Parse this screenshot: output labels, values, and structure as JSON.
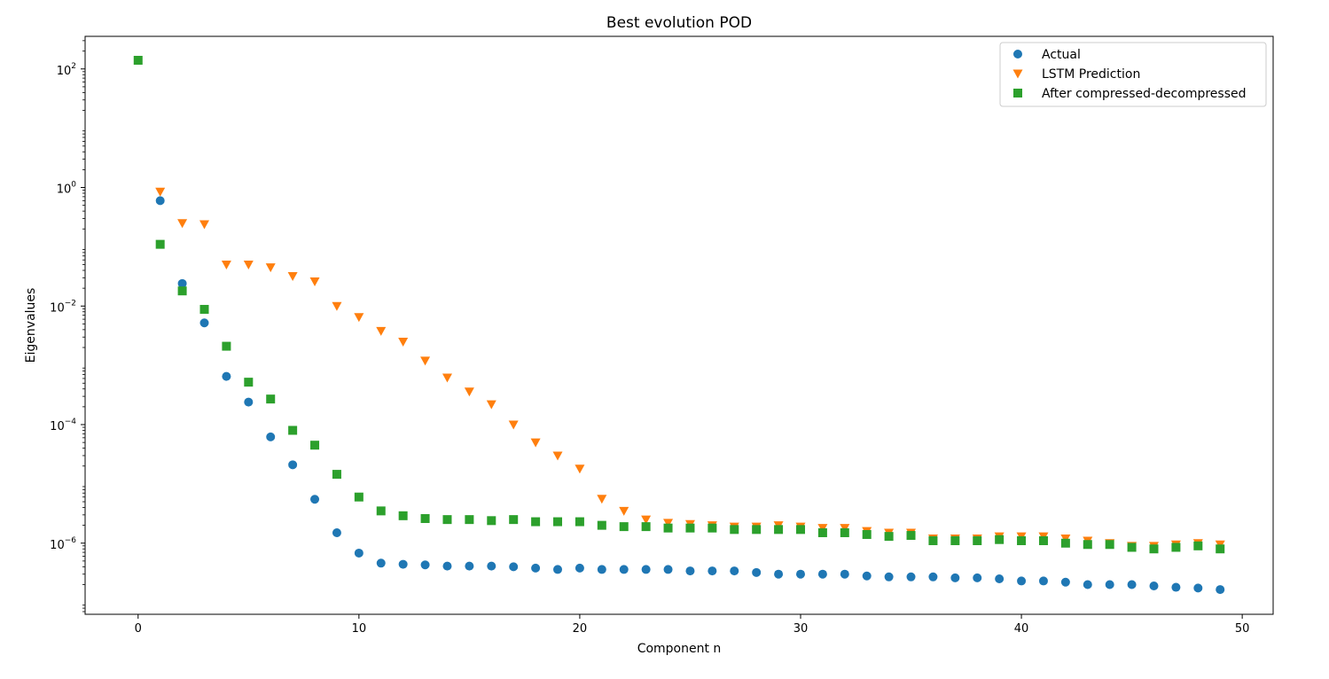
{
  "colors": {
    "actual": "#1f77b4",
    "lstm": "#ff7f0e",
    "compressed": "#2ca02c"
  },
  "chart_data": {
    "type": "scatter",
    "title": "Best evolution POD",
    "xlabel": "Component n",
    "ylabel": "Eigenvalues",
    "yscale": "log",
    "xlim": [
      -2.4,
      51.4
    ],
    "ylim_log10": [
      -7.2,
      2.55
    ],
    "x_ticks": [
      0,
      10,
      20,
      30,
      40,
      50
    ],
    "x_tick_labels": [
      "0",
      "10",
      "20",
      "30",
      "40",
      "50"
    ],
    "y_ticks_log10": [
      2,
      0,
      -2,
      -4,
      -6
    ],
    "y_tick_bases": [
      "10",
      "10",
      "10",
      "10",
      "10"
    ],
    "y_tick_exponents": [
      "2",
      "0",
      "−2",
      "−4",
      "−6"
    ],
    "legend_position": "top-right",
    "x": [
      0,
      1,
      2,
      3,
      4,
      5,
      6,
      7,
      8,
      9,
      10,
      11,
      12,
      13,
      14,
      15,
      16,
      17,
      18,
      19,
      20,
      21,
      22,
      23,
      24,
      25,
      26,
      27,
      28,
      29,
      30,
      31,
      32,
      33,
      34,
      35,
      36,
      37,
      38,
      39,
      40,
      41,
      42,
      43,
      44,
      45,
      46,
      47,
      48,
      49
    ],
    "series": [
      {
        "name": "Actual",
        "key": "actual",
        "marker": "circle",
        "values": [
          null,
          0.6,
          0.024,
          0.0052,
          0.00065,
          0.00024,
          6.2e-05,
          2.1e-05,
          5.5e-06,
          1.5e-06,
          6.8e-07,
          4.6e-07,
          4.4e-07,
          4.3e-07,
          4.1e-07,
          4.1e-07,
          4.1e-07,
          4e-07,
          3.8e-07,
          3.6e-07,
          3.8e-07,
          3.6e-07,
          3.6e-07,
          3.6e-07,
          3.6e-07,
          3.4e-07,
          3.4e-07,
          3.4e-07,
          3.2e-07,
          3e-07,
          3e-07,
          3e-07,
          3e-07,
          2.8e-07,
          2.7e-07,
          2.7e-07,
          2.7e-07,
          2.6e-07,
          2.6e-07,
          2.5e-07,
          2.3e-07,
          2.3e-07,
          2.2e-07,
          2e-07,
          2e-07,
          2e-07,
          1.9e-07,
          1.8e-07,
          1.75e-07,
          1.65e-07
        ]
      },
      {
        "name": "LSTM Prediction",
        "key": "lstm",
        "marker": "triangle-down",
        "values": [
          null,
          0.85,
          0.25,
          0.24,
          0.05,
          0.05,
          0.045,
          0.032,
          0.026,
          0.01,
          0.0065,
          0.0038,
          0.0025,
          0.0012,
          0.00062,
          0.00036,
          0.00022,
          0.0001,
          5e-05,
          3e-05,
          1.8e-05,
          5.6e-06,
          3.5e-06,
          2.5e-06,
          2.2e-06,
          2.1e-06,
          2e-06,
          1.9e-06,
          1.9e-06,
          2e-06,
          1.9e-06,
          1.8e-06,
          1.8e-06,
          1.6e-06,
          1.5e-06,
          1.5e-06,
          1.2e-06,
          1.2e-06,
          1.2e-06,
          1.3e-06,
          1.3e-06,
          1.3e-06,
          1.2e-06,
          1.1e-06,
          1e-06,
          9e-07,
          9e-07,
          9.5e-07,
          1e-06,
          9.5e-07
        ]
      },
      {
        "name": "After compressed-decompressed",
        "key": "compressed",
        "marker": "square",
        "values": [
          140,
          0.11,
          0.018,
          0.0088,
          0.0021,
          0.00052,
          0.00027,
          8e-05,
          4.5e-05,
          1.45e-05,
          6e-06,
          3.5e-06,
          2.9e-06,
          2.6e-06,
          2.5e-06,
          2.5e-06,
          2.4e-06,
          2.5e-06,
          2.3e-06,
          2.3e-06,
          2.3e-06,
          2e-06,
          1.9e-06,
          1.9e-06,
          1.8e-06,
          1.8e-06,
          1.8e-06,
          1.7e-06,
          1.7e-06,
          1.7e-06,
          1.7e-06,
          1.5e-06,
          1.5e-06,
          1.4e-06,
          1.3e-06,
          1.35e-06,
          1.1e-06,
          1.1e-06,
          1.1e-06,
          1.15e-06,
          1.1e-06,
          1.1e-06,
          1e-06,
          9.5e-07,
          9.5e-07,
          8.5e-07,
          8e-07,
          8.5e-07,
          9e-07,
          8e-07
        ]
      }
    ]
  }
}
